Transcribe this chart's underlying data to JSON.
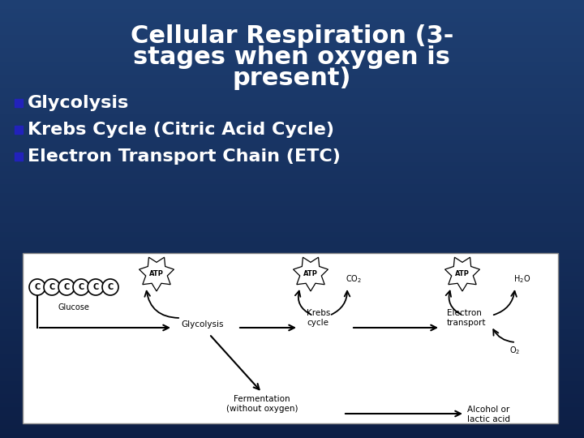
{
  "title_line1": "Cellular Respiration (3-",
  "title_line2": "stages when oxygen is",
  "title_line3": "present)",
  "bullet_color": "#2222bb",
  "bullet1": "Glycolysis",
  "bullet2": "Krebs Cycle (Citric Acid Cycle)",
  "bullet3": "Electron Transport Chain (ETC)",
  "bg_color": "#1a3560",
  "title_color": "#ffffff",
  "bullet_text_color": "#ffffff",
  "diagram_bg": "#ffffff",
  "diagram_border": "#aaaaaa",
  "title_fontsize": 22,
  "bullet_fontsize": 16
}
